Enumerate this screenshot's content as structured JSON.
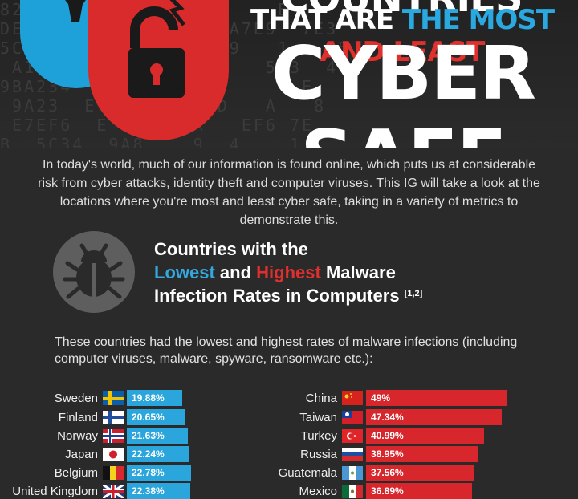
{
  "header": {
    "title_top": "COUNTRIES",
    "line2_part1": "THAT ARE",
    "line2_part2": "THE MOST",
    "line2_part3": "AND LEAST",
    "title_main": "CYBER SAFE"
  },
  "intro": "In today's world, much of our information is found online, which puts us at considerable risk from cyber attacks, identity theft and computer viruses. This IG will take a look at the locations where you're most and least cyber safe, taking in a variety of metrics to demonstrate this.",
  "section": {
    "line1": "Countries with the",
    "lowest": "Lowest",
    "and": "and",
    "highest": "Highest",
    "malware": "Malware",
    "line3": "Infection Rates in Computers",
    "ref": "[1,2]"
  },
  "description": "These countries had the lowest and highest rates of malware infections (including computer viruses, malware, spyware, ransomware etc.):",
  "lowest": [
    {
      "country": "Sweden",
      "value": "19.88%"
    },
    {
      "country": "Finland",
      "value": "20.65%"
    },
    {
      "country": "Norway",
      "value": "21.63%"
    },
    {
      "country": "Japan",
      "value": "22.24%"
    },
    {
      "country": "Belgium",
      "value": "22.78%"
    },
    {
      "country": "United Kingdom",
      "value": "22.38%"
    }
  ],
  "highest": [
    {
      "country": "China",
      "value": "49%"
    },
    {
      "country": "Taiwan",
      "value": "47.34%"
    },
    {
      "country": "Turkey",
      "value": "40.99%"
    },
    {
      "country": "Russia",
      "value": "38.95%"
    },
    {
      "country": "Guatemala",
      "value": "37.56%"
    },
    {
      "country": "Mexico",
      "value": "36.89%"
    }
  ],
  "colors": {
    "blue": "#2aa6dc",
    "red": "#d8272c",
    "background": "#2a2a2a"
  }
}
